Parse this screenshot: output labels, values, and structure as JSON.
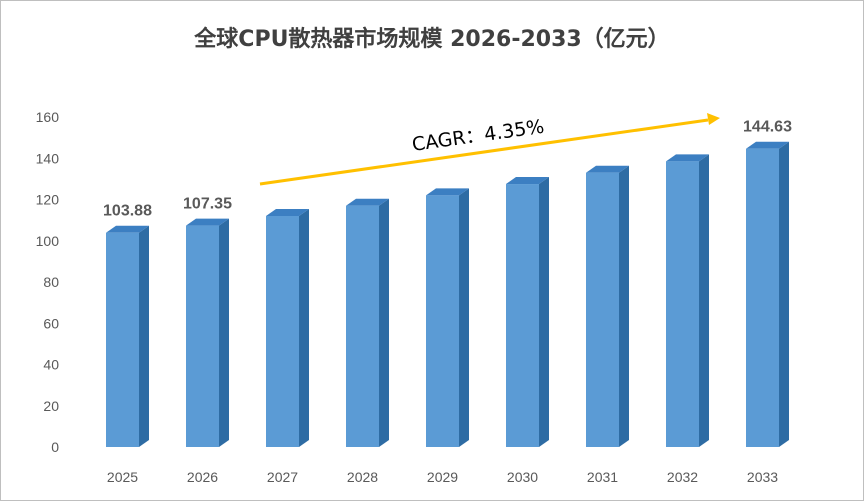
{
  "chart_data": {
    "type": "bar",
    "title": "全球CPU散热器市场规模 2026-2033（亿元）",
    "categories": [
      "2025",
      "2026",
      "2027",
      "2028",
      "2029",
      "2030",
      "2031",
      "2032",
      "2033"
    ],
    "values": [
      103.88,
      107.35,
      112.0,
      117.0,
      122.0,
      127.5,
      133.0,
      138.5,
      144.63
    ],
    "labeled_values": {
      "0": "103.88",
      "1": "107.35",
      "8": "144.63"
    },
    "ylim": [
      0,
      160
    ],
    "yticks": [
      0,
      20,
      40,
      60,
      80,
      100,
      120,
      140,
      160
    ],
    "grid": false,
    "bar_style": "3d-column",
    "bar_color": "#5b9bd5",
    "bar_side_color": "#2e6ca4",
    "bar_top_color": "#3c7fc2",
    "annotation": {
      "text": "CAGR：4.35%",
      "arrow_color": "#ffc000",
      "arrow_from_category": "2027",
      "arrow_to_category": "2033"
    }
  }
}
